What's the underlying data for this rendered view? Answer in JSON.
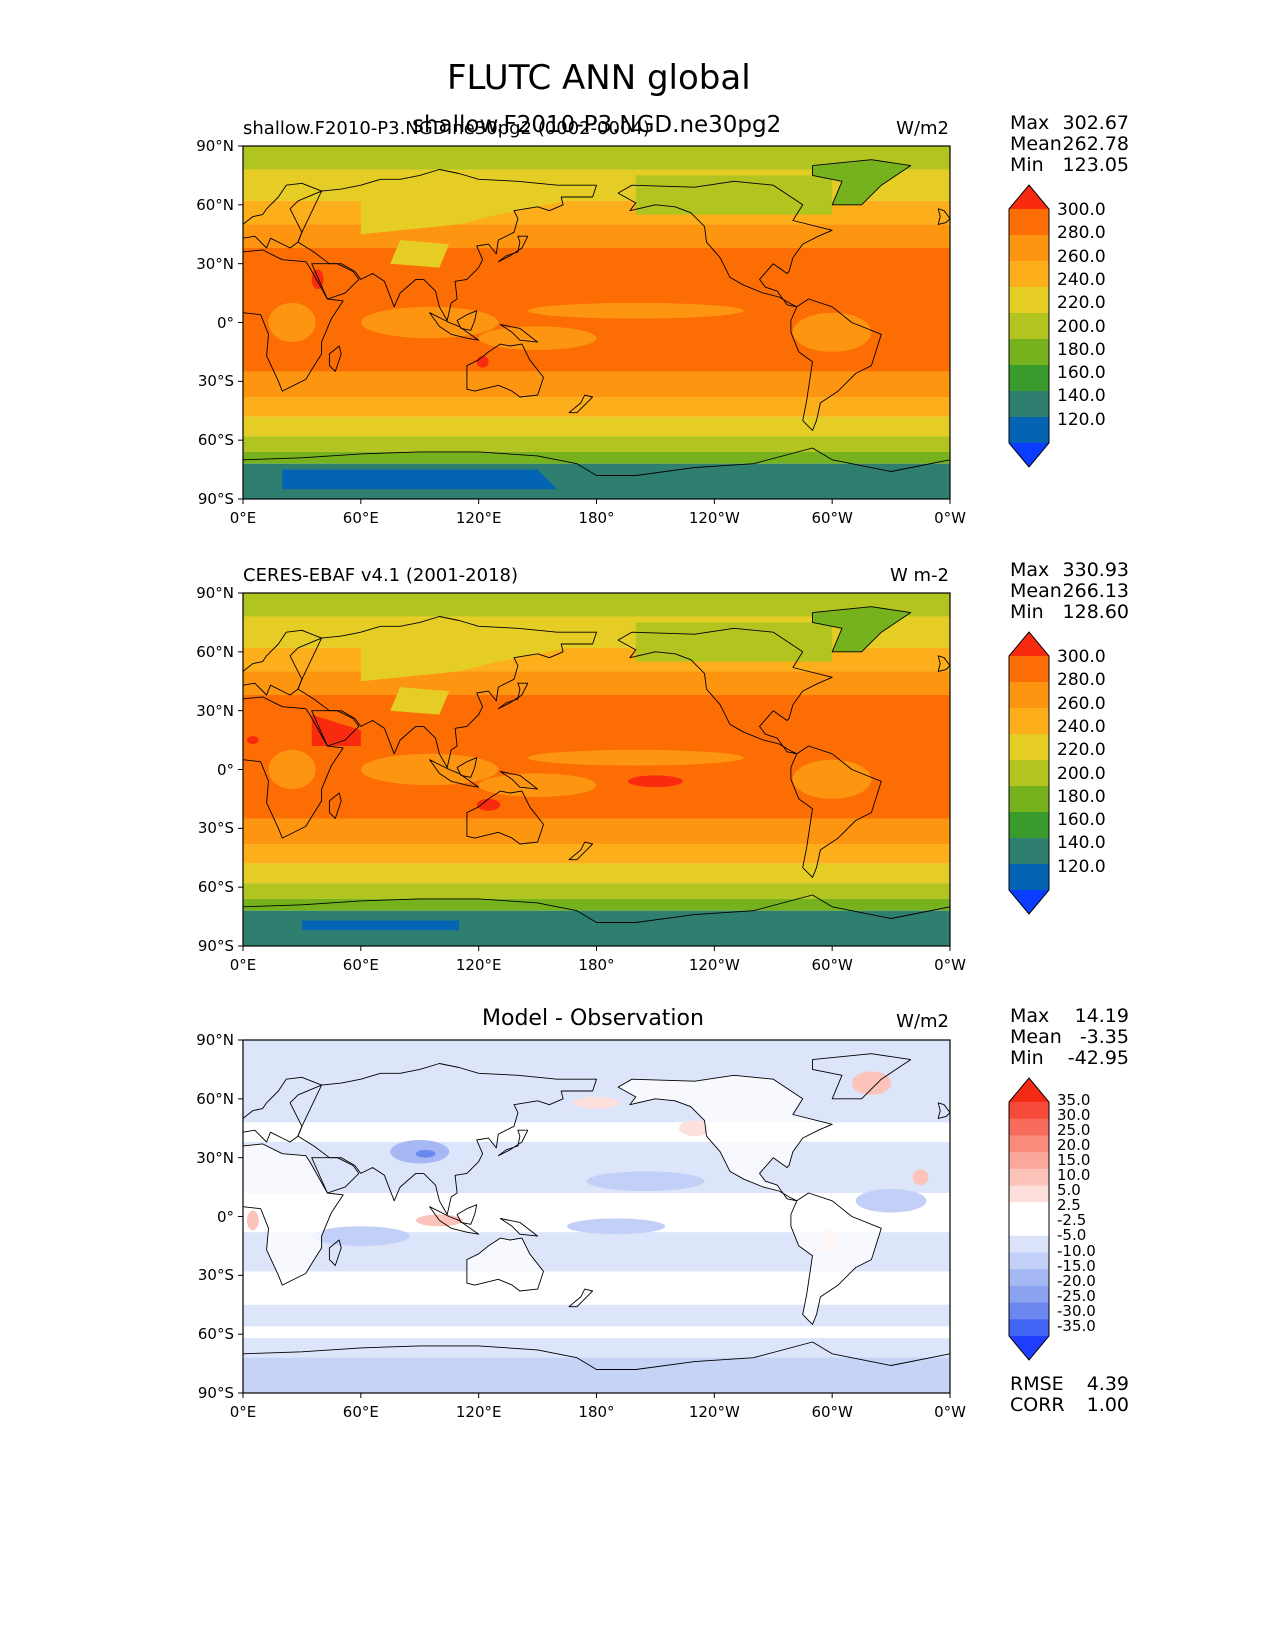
{
  "figure": {
    "title": "FLUTC ANN global"
  },
  "axes": {
    "lat_ticks": [
      "90°N",
      "60°N",
      "30°N",
      "0°",
      "30°S",
      "60°S",
      "90°S"
    ],
    "lon_ticks": [
      "0°E",
      "60°E",
      "120°E",
      "180°",
      "120°W",
      "60°W",
      "0°W"
    ]
  },
  "panels": [
    {
      "left_title": "shallow.F2010-P3.NGD.ne30pg2 (0002-0004)",
      "center_title": "shallow.F2010-P3.NGD.ne30pg2",
      "units": "W/m2",
      "stats": {
        "max_label": "Max",
        "max": "302.67",
        "mean_label": "Mean",
        "mean": "262.78",
        "min_label": "Min",
        "min": "123.05"
      },
      "colorbar": [
        "300.0",
        "280.0",
        "260.0",
        "240.0",
        "220.0",
        "200.0",
        "180.0",
        "160.0",
        "140.0",
        "120.0"
      ]
    },
    {
      "left_title": "CERES-EBAF v4.1 (2001-2018)",
      "center_title": "",
      "units": "W m-2",
      "stats": {
        "max_label": "Max",
        "max": "330.93",
        "mean_label": "Mean",
        "mean": "266.13",
        "min_label": "Min",
        "min": "128.60"
      },
      "colorbar": [
        "300.0",
        "280.0",
        "260.0",
        "240.0",
        "220.0",
        "200.0",
        "180.0",
        "160.0",
        "140.0",
        "120.0"
      ]
    },
    {
      "left_title": "",
      "center_title": "Model - Observation",
      "units": "W/m2",
      "stats": {
        "max_label": "Max",
        "max": "14.19",
        "mean_label": "Mean",
        "mean": "-3.35",
        "min_label": "Min",
        "min": "-42.95"
      },
      "colorbar": [
        "35.0",
        "30.0",
        "25.0",
        "20.0",
        "15.0",
        "10.0",
        "5.0",
        "2.5",
        "-2.5",
        "-5.0",
        "-10.0",
        "-15.0",
        "-20.0",
        "-25.0",
        "-30.0",
        "-35.0"
      ],
      "rmse_label": "RMSE",
      "rmse": "4.39",
      "corr_label": "CORR",
      "corr": "1.00"
    }
  ],
  "colors": {
    "abs_scale": [
      "#0a3dff",
      "#0563b3",
      "#2e7f6f",
      "#3a9b2d",
      "#76b21e",
      "#b2c41f",
      "#e6cd25",
      "#fcae1b",
      "#fd9510",
      "#fc6d04",
      "#f92b0f"
    ],
    "diff_scale": [
      "#1f3dff",
      "#4264f5",
      "#6b88f0",
      "#8aa2f0",
      "#a6b8f3",
      "#c2cff6",
      "#dbe3fb",
      "#ffffff",
      "#ffffff",
      "#fde0dc",
      "#fcc3bb",
      "#fba79c",
      "#f98a7c",
      "#f76c5c",
      "#f5493a",
      "#f32a14"
    ]
  }
}
